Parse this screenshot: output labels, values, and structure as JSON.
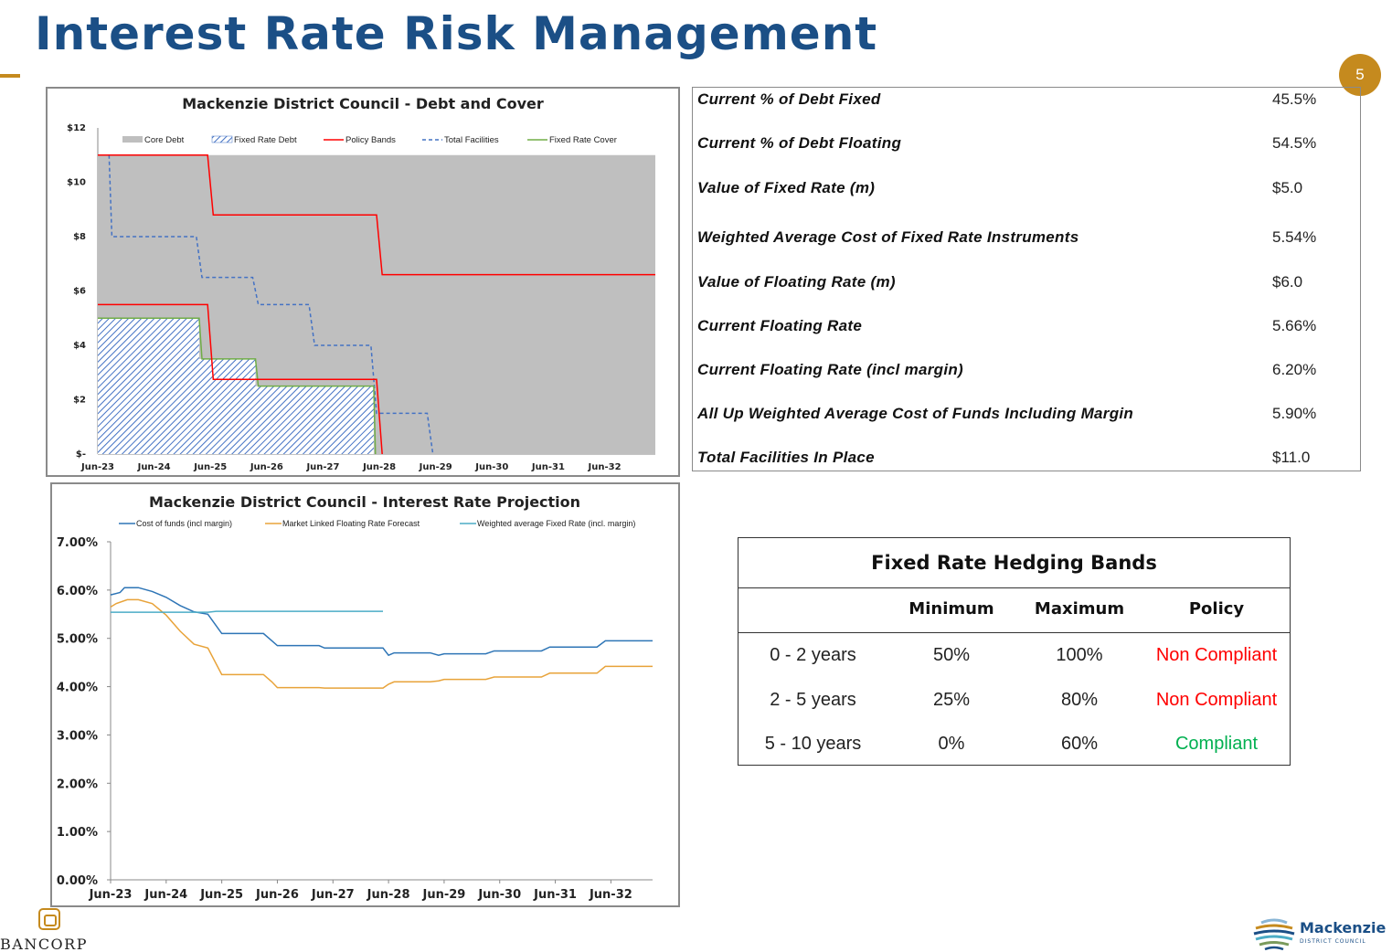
{
  "header": {
    "title": "Interest Rate Risk Management",
    "page_number": "5",
    "accent_color": "#c58a1e",
    "title_color": "#1b4f86"
  },
  "metrics": [
    {
      "label": "Current % of Debt Fixed",
      "value": "45.5%"
    },
    {
      "label": "Current % of Debt Floating",
      "value": "54.5%"
    },
    {
      "label": "Value of Fixed Rate (m)",
      "value": "$5.0"
    },
    {
      "label": "Weighted Average Cost of Fixed Rate Instruments",
      "value": "5.54%"
    },
    {
      "label": "Value of Floating Rate (m)",
      "value": "$6.0"
    },
    {
      "label": "Current Floating Rate",
      "value": "5.66%"
    },
    {
      "label": "Current Floating Rate (incl margin)",
      "value": "6.20%"
    },
    {
      "label": "All Up Weighted Average Cost of Funds Including Margin",
      "value": "5.90%"
    },
    {
      "label": "Total Facilities In Place",
      "value": "$11.0"
    }
  ],
  "hedging_bands": {
    "title": "Fixed Rate Hedging Bands",
    "headers": [
      "",
      "Minimum",
      "Maximum",
      "Policy"
    ],
    "rows": [
      {
        "band": "0 - 2 years",
        "min": "50%",
        "max": "100%",
        "policy": "Non Compliant",
        "color": "#ff0000"
      },
      {
        "band": "2 - 5 years",
        "min": "25%",
        "max": "80%",
        "policy": "Non Compliant",
        "color": "#ff0000"
      },
      {
        "band": "5 - 10 years",
        "min": "0%",
        "max": "60%",
        "policy": "Compliant",
        "color": "#00b050"
      }
    ]
  },
  "logos": {
    "bancorp": "BANCORP",
    "council_name": "Mackenzie",
    "council_sub": "DISTRICT COUNCIL"
  },
  "chart_data": [
    {
      "type": "area",
      "title": "Mackenzie District Council - Debt and Cover",
      "xlabel": "",
      "ylabel": "",
      "x_ticks": [
        "Jun-23",
        "Jun-24",
        "Jun-25",
        "Jun-26",
        "Jun-27",
        "Jun-28",
        "Jun-29",
        "Jun-30",
        "Jun-31",
        "Jun-32"
      ],
      "y_ticks": [
        "$-",
        "$2",
        "$4",
        "$6",
        "$8",
        "$10",
        "$12"
      ],
      "ylim": [
        0,
        12
      ],
      "xlim": [
        0,
        9.9
      ],
      "legend_position": "top",
      "series": [
        {
          "name": "Core Debt",
          "style": "area",
          "color": "#bfbfbf",
          "points": [
            [
              0,
              11
            ],
            [
              9.9,
              11
            ]
          ]
        },
        {
          "name": "Fixed Rate Debt",
          "style": "hatched-area",
          "color": "#4472c4",
          "points": [
            [
              0,
              5
            ],
            [
              1.8,
              5
            ],
            [
              1.8,
              3.5
            ],
            [
              2.8,
              3.5
            ],
            [
              2.8,
              2.5
            ],
            [
              4.9,
              2.5
            ],
            [
              4.9,
              0
            ]
          ]
        },
        {
          "name": "Policy Bands",
          "style": "line",
          "color": "#ff0000",
          "lines": [
            [
              [
                0,
                11
              ],
              [
                1.95,
                11
              ],
              [
                2.05,
                8.8
              ],
              [
                4.95,
                8.8
              ],
              [
                5.05,
                6.6
              ],
              [
                9.9,
                6.6
              ]
            ],
            [
              [
                0,
                5.5
              ],
              [
                1.95,
                5.5
              ],
              [
                2.05,
                2.75
              ],
              [
                4.95,
                2.75
              ],
              [
                5.05,
                0
              ]
            ]
          ]
        },
        {
          "name": "Total Facilities",
          "style": "dashed-line",
          "color": "#4472c4",
          "points": [
            [
              0.2,
              11
            ],
            [
              0.25,
              8
            ],
            [
              1.75,
              8
            ],
            [
              1.85,
              6.5
            ],
            [
              2.75,
              6.5
            ],
            [
              2.85,
              5.5
            ],
            [
              3.75,
              5.5
            ],
            [
              3.85,
              4
            ],
            [
              4.85,
              4
            ],
            [
              4.95,
              1.5
            ],
            [
              5.85,
              1.5
            ],
            [
              5.95,
              0
            ]
          ]
        },
        {
          "name": "Fixed Rate Cover",
          "style": "line",
          "color": "#70ad47",
          "points": [
            [
              0,
              5
            ],
            [
              1.8,
              5
            ],
            [
              1.85,
              3.5
            ],
            [
              2.8,
              3.5
            ],
            [
              2.85,
              2.5
            ],
            [
              4.9,
              2.5
            ],
            [
              4.93,
              0
            ]
          ]
        }
      ]
    },
    {
      "type": "line",
      "title": "Mackenzie District Council - Interest Rate Projection",
      "xlabel": "",
      "ylabel": "",
      "x_ticks": [
        "Jun-23",
        "Jun-24",
        "Jun-25",
        "Jun-26",
        "Jun-27",
        "Jun-28",
        "Jun-29",
        "Jun-30",
        "Jun-31",
        "Jun-32"
      ],
      "y_ticks": [
        "0.00%",
        "1.00%",
        "2.00%",
        "3.00%",
        "4.00%",
        "5.00%",
        "6.00%",
        "7.00%"
      ],
      "ylim": [
        0,
        7
      ],
      "xlim": [
        0,
        9.75
      ],
      "legend_position": "top",
      "series": [
        {
          "name": "Cost of funds (incl margin)",
          "color": "#2e75b6",
          "points": [
            [
              0,
              5.9
            ],
            [
              0.17,
              5.95
            ],
            [
              0.25,
              6.05
            ],
            [
              0.5,
              6.05
            ],
            [
              0.75,
              5.97
            ],
            [
              1.0,
              5.85
            ],
            [
              1.25,
              5.68
            ],
            [
              1.5,
              5.55
            ],
            [
              1.75,
              5.5
            ],
            [
              2.0,
              5.1
            ],
            [
              2.25,
              5.1
            ],
            [
              2.75,
              5.1
            ],
            [
              2.9,
              4.95
            ],
            [
              3.0,
              4.85
            ],
            [
              3.75,
              4.85
            ],
            [
              3.85,
              4.8
            ],
            [
              4.9,
              4.8
            ],
            [
              5.0,
              4.65
            ],
            [
              5.1,
              4.7
            ],
            [
              5.75,
              4.7
            ],
            [
              5.9,
              4.65
            ],
            [
              6.0,
              4.68
            ],
            [
              6.75,
              4.68
            ],
            [
              6.9,
              4.74
            ],
            [
              7.75,
              4.74
            ],
            [
              7.9,
              4.82
            ],
            [
              8.75,
              4.82
            ],
            [
              8.9,
              4.95
            ],
            [
              9.75,
              4.95
            ]
          ]
        },
        {
          "name": "Market Linked Floating Rate Forecast",
          "color": "#e8a33a",
          "points": [
            [
              0,
              5.65
            ],
            [
              0.1,
              5.72
            ],
            [
              0.3,
              5.8
            ],
            [
              0.5,
              5.8
            ],
            [
              0.75,
              5.72
            ],
            [
              1.0,
              5.48
            ],
            [
              1.25,
              5.15
            ],
            [
              1.5,
              4.88
            ],
            [
              1.75,
              4.8
            ],
            [
              2.0,
              4.25
            ],
            [
              2.25,
              4.25
            ],
            [
              2.75,
              4.25
            ],
            [
              2.9,
              4.1
            ],
            [
              3.0,
              3.98
            ],
            [
              3.75,
              3.98
            ],
            [
              3.85,
              3.97
            ],
            [
              4.9,
              3.97
            ],
            [
              5.0,
              4.05
            ],
            [
              5.1,
              4.1
            ],
            [
              5.75,
              4.1
            ],
            [
              5.9,
              4.12
            ],
            [
              6.0,
              4.15
            ],
            [
              6.75,
              4.15
            ],
            [
              6.9,
              4.2
            ],
            [
              7.75,
              4.2
            ],
            [
              7.9,
              4.28
            ],
            [
              8.75,
              4.28
            ],
            [
              8.9,
              4.42
            ],
            [
              9.75,
              4.42
            ]
          ]
        },
        {
          "name": "Weighted average Fixed Rate (incl. margin)",
          "color": "#4bacc6",
          "points": [
            [
              0,
              5.54
            ],
            [
              1.75,
              5.54
            ],
            [
              1.9,
              5.56
            ],
            [
              4.9,
              5.56
            ]
          ]
        }
      ]
    }
  ]
}
